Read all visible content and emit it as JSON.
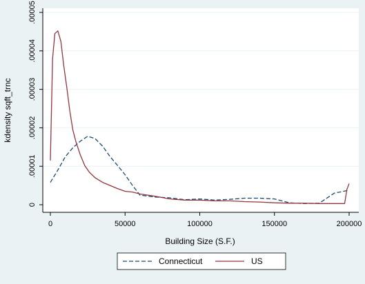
{
  "chart_data": {
    "type": "line",
    "title": "",
    "xlabel": "Building Size (S.F.)",
    "ylabel": "kdensity sqft_trnc",
    "xlim": [
      0,
      200000
    ],
    "ylim": [
      0,
      5e-05
    ],
    "grid": true,
    "legend_position": "bottom",
    "x_ticks": [
      {
        "value": 0,
        "label": "0"
      },
      {
        "value": 50000,
        "label": "50000"
      },
      {
        "value": 100000,
        "label": "100000"
      },
      {
        "value": 150000,
        "label": "150000"
      },
      {
        "value": 200000,
        "label": "200000"
      }
    ],
    "y_ticks": [
      {
        "value": 0,
        "label": "0"
      },
      {
        "value": 1e-05,
        "label": ".00001"
      },
      {
        "value": 2e-05,
        "label": ".00002"
      },
      {
        "value": 3e-05,
        "label": ".00003"
      },
      {
        "value": 4e-05,
        "label": ".00004"
      },
      {
        "value": 5e-05,
        "label": ".00005"
      }
    ],
    "series": [
      {
        "name": "Connecticut",
        "color": "#1a476f",
        "dash": "dashed",
        "x": [
          0,
          5000,
          10000,
          15000,
          20000,
          25000,
          30000,
          35000,
          40000,
          45000,
          50000,
          55000,
          60000,
          70000,
          80000,
          90000,
          100000,
          110000,
          120000,
          130000,
          140000,
          150000,
          160000,
          170000,
          180000,
          190000,
          200000
        ],
        "y": [
          5.8e-06,
          9e-06,
          1.25e-05,
          1.48e-05,
          1.65e-05,
          1.78e-05,
          1.72e-05,
          1.52e-05,
          1.25e-05,
          1.02e-05,
          7.8e-06,
          5e-06,
          2.5e-06,
          2e-06,
          1.8e-06,
          1.3e-06,
          1.5e-06,
          1.2e-06,
          1.4e-06,
          1.7e-06,
          1.7e-06,
          1.5e-06,
          5e-07,
          3e-07,
          4e-07,
          3e-06,
          3.8e-06
        ]
      },
      {
        "name": "US",
        "color": "#90353b",
        "dash": "solid",
        "x": [
          0,
          1500,
          3000,
          5000,
          7000,
          9000,
          11000,
          13000,
          15000,
          17000,
          20000,
          23000,
          26000,
          30000,
          35000,
          40000,
          45000,
          50000,
          55000,
          60000,
          70000,
          80000,
          90000,
          100000,
          110000,
          120000,
          130000,
          140000,
          150000,
          160000,
          170000,
          180000,
          197000,
          198500,
          200000
        ],
        "y": [
          1.15e-05,
          3.8e-05,
          4.45e-05,
          4.52e-05,
          4.25e-05,
          3.6e-05,
          3.05e-05,
          2.45e-05,
          1.95e-05,
          1.65e-05,
          1.3e-05,
          1.02e-05,
          8.5e-06,
          7e-06,
          5.8e-06,
          5e-06,
          4.2e-06,
          3.5e-06,
          3.3e-06,
          2.8e-06,
          2.2e-06,
          1.5e-06,
          1.2e-06,
          1.2e-06,
          1e-06,
          1e-06,
          8e-07,
          7e-07,
          5e-07,
          4e-07,
          4e-07,
          3e-07,
          3e-07,
          4e-06,
          5.5e-06
        ]
      }
    ]
  }
}
